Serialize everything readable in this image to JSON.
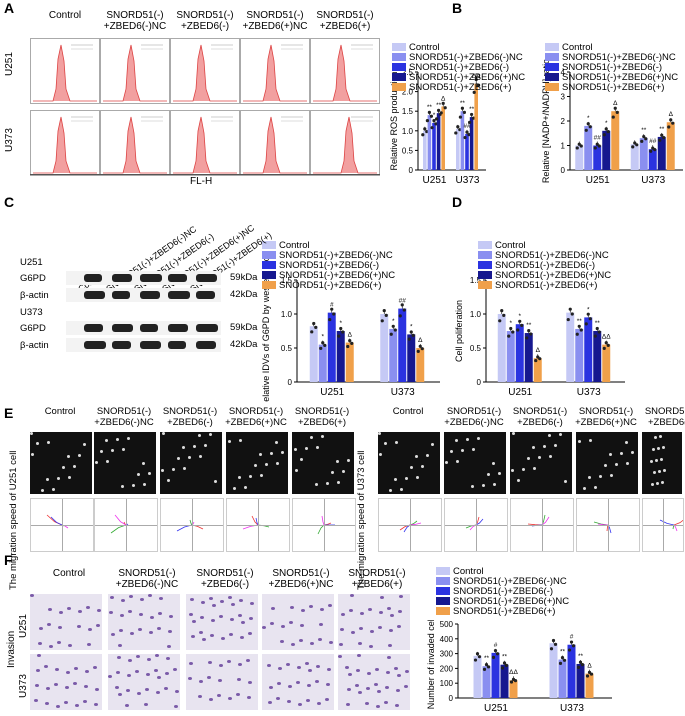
{
  "panel_letters": [
    "A",
    "B",
    "C",
    "D",
    "E",
    "F"
  ],
  "groups": [
    "Control",
    "SNORD51(-)\n+ZBED6(-)NC",
    "SNORD51(-)\n+ZBED6(-)",
    "SNORD51(-)\n+ZBED6(+)NC",
    "SNORD51(-)\n+ZBED6(+)"
  ],
  "cell_lines": [
    "U251",
    "U373"
  ],
  "legend": [
    "Control",
    "SNORD51(-)+ZBED6(-)NC",
    "SNORD51(-)+ZBED6(-)",
    "SNORD51(-)+ZBED6(+)NC",
    "SNORD51(-)+ZBED6(+)"
  ],
  "colors": [
    "#c5c9f5",
    "#8a8ff0",
    "#2b33e0",
    "#16188f",
    "#f0a04a"
  ],
  "panel_a": {
    "xaxis": "FL-H"
  },
  "panel_c": {
    "blot_rows": [
      "U251",
      "G6PD",
      "β-actin",
      "U373",
      "G6PD",
      "β-actin"
    ],
    "sizes": [
      "59kDa",
      "42kDa",
      "59kDa",
      "42kDa"
    ],
    "lane_labels": [
      "Control",
      "SNORD51(-)+ZBED6(-)NC",
      "SNORD51(-)+ZBED6(-)",
      "SNORD51(-)+ZBED6(+)NC",
      "SNORD51(-)+ZBED6(+)"
    ]
  },
  "panel_e": {
    "ylabel_left": "The migration speed of U251 cell",
    "ylabel_right": "The migration speed of U373 cell"
  },
  "panel_f": {
    "row_labels": [
      "U251",
      "U373"
    ],
    "side_label": "Invasion"
  },
  "chart_data": [
    {
      "id": "A",
      "type": "bar",
      "ylabel": "Relative ROS production",
      "categories": [
        "U251",
        "U373"
      ],
      "ylim": [
        0,
        2.5
      ],
      "yticks": [
        "0",
        "0.5",
        "1.0",
        "1.5",
        "2.0",
        "2.5"
      ],
      "series": [
        {
          "name": "Control",
          "values": [
            1.0,
            1.05
          ]
        },
        {
          "name": "SNORD51(-)+ZBED6(-)NC",
          "values": [
            1.4,
            1.5
          ]
        },
        {
          "name": "SNORD51(-)+ZBED6(-)",
          "values": [
            1.2,
            0.92
          ]
        },
        {
          "name": "SNORD51(-)+ZBED6(+)NC",
          "values": [
            1.45,
            1.35
          ]
        },
        {
          "name": "SNORD51(-)+ZBED6(+)",
          "values": [
            1.62,
            2.2
          ]
        }
      ],
      "annotations": [
        [
          "",
          "**",
          "*",
          "**",
          "Δ"
        ],
        [
          "",
          "**",
          "##",
          "**",
          "ΔΔ"
        ]
      ]
    },
    {
      "id": "B",
      "type": "bar",
      "ylabel": "Relative [NADP+/NADPH] ratio",
      "categories": [
        "U251",
        "U373"
      ],
      "ylim": [
        0,
        4
      ],
      "yticks": [
        "0",
        "1",
        "2",
        "3",
        "4"
      ],
      "series": [
        {
          "name": "Control",
          "values": [
            1.0,
            1.05
          ]
        },
        {
          "name": "SNORD51(-)+ZBED6(-)NC",
          "values": [
            1.8,
            1.3
          ]
        },
        {
          "name": "SNORD51(-)+ZBED6(-)",
          "values": [
            1.0,
            0.85
          ]
        },
        {
          "name": "SNORD51(-)+ZBED6(+)NC",
          "values": [
            1.6,
            1.35
          ]
        },
        {
          "name": "SNORD51(-)+ZBED6(+)",
          "values": [
            2.4,
            1.95
          ]
        }
      ],
      "annotations": [
        [
          "",
          "*",
          "##",
          "*",
          "Δ"
        ],
        [
          "",
          "**",
          "##",
          "**",
          "Δ"
        ]
      ]
    },
    {
      "id": "C",
      "type": "bar",
      "ylabel": "Relative IDVs of G6PD by western blot",
      "categories": [
        "U251",
        "U373"
      ],
      "ylim": [
        0,
        1.5
      ],
      "yticks": [
        "0",
        "0.5",
        "1.0",
        "1.5"
      ],
      "series": [
        {
          "name": "Control",
          "values": [
            0.82,
            1.0
          ]
        },
        {
          "name": "SNORD51(-)+ZBED6(-)NC",
          "values": [
            0.55,
            0.78
          ]
        },
        {
          "name": "SNORD51(-)+ZBED6(-)",
          "values": [
            1.02,
            1.08
          ]
        },
        {
          "name": "SNORD51(-)+ZBED6(+)NC",
          "values": [
            0.75,
            0.7
          ]
        },
        {
          "name": "SNORD51(-)+ZBED6(+)",
          "values": [
            0.58,
            0.5
          ]
        }
      ],
      "annotations": [
        [
          "",
          "*",
          "#",
          "*",
          "Δ"
        ],
        [
          "",
          "*",
          "##",
          "*",
          "Δ"
        ]
      ]
    },
    {
      "id": "D",
      "type": "bar",
      "ylabel": "Cell poliferation",
      "categories": [
        "U251",
        "U373"
      ],
      "ylim": [
        0,
        1.5
      ],
      "yticks": [
        "0",
        "0.5",
        "1.0",
        "1.5"
      ],
      "series": [
        {
          "name": "Control",
          "values": [
            1.0,
            1.02
          ]
        },
        {
          "name": "SNORD51(-)+ZBED6(-)NC",
          "values": [
            0.75,
            0.78
          ]
        },
        {
          "name": "SNORD51(-)+ZBED6(-)",
          "values": [
            0.85,
            0.95
          ]
        },
        {
          "name": "SNORD51(-)+ZBED6(+)NC",
          "values": [
            0.72,
            0.75
          ]
        },
        {
          "name": "SNORD51(-)+ZBED6(+)",
          "values": [
            0.35,
            0.55
          ]
        }
      ],
      "annotations": [
        [
          "",
          "*",
          "*",
          "**",
          "Δ"
        ],
        [
          "",
          "**",
          "*",
          "**",
          "ΔΔ"
        ]
      ]
    },
    {
      "id": "F",
      "type": "bar",
      "ylabel": "Number of invaded cells",
      "categories": [
        "U251",
        "U373"
      ],
      "ylim": [
        0,
        500
      ],
      "yticks": [
        "0",
        "100",
        "200",
        "300",
        "400",
        "500"
      ],
      "series": [
        {
          "name": "Control",
          "values": [
            285,
            370
          ]
        },
        {
          "name": "SNORD51(-)+ZBED6(-)NC",
          "values": [
            215,
            260
          ]
        },
        {
          "name": "SNORD51(-)+ZBED6(-)",
          "values": [
            305,
            360
          ]
        },
        {
          "name": "SNORD51(-)+ZBED6(+)NC",
          "values": [
            225,
            230
          ]
        },
        {
          "name": "SNORD51(-)+ZBED6(+)",
          "values": [
            120,
            165
          ]
        }
      ],
      "annotations": [
        [
          "",
          "**",
          "#",
          "**",
          "ΔΔ"
        ],
        [
          "",
          "**",
          "#",
          "**",
          "Δ"
        ]
      ]
    }
  ]
}
